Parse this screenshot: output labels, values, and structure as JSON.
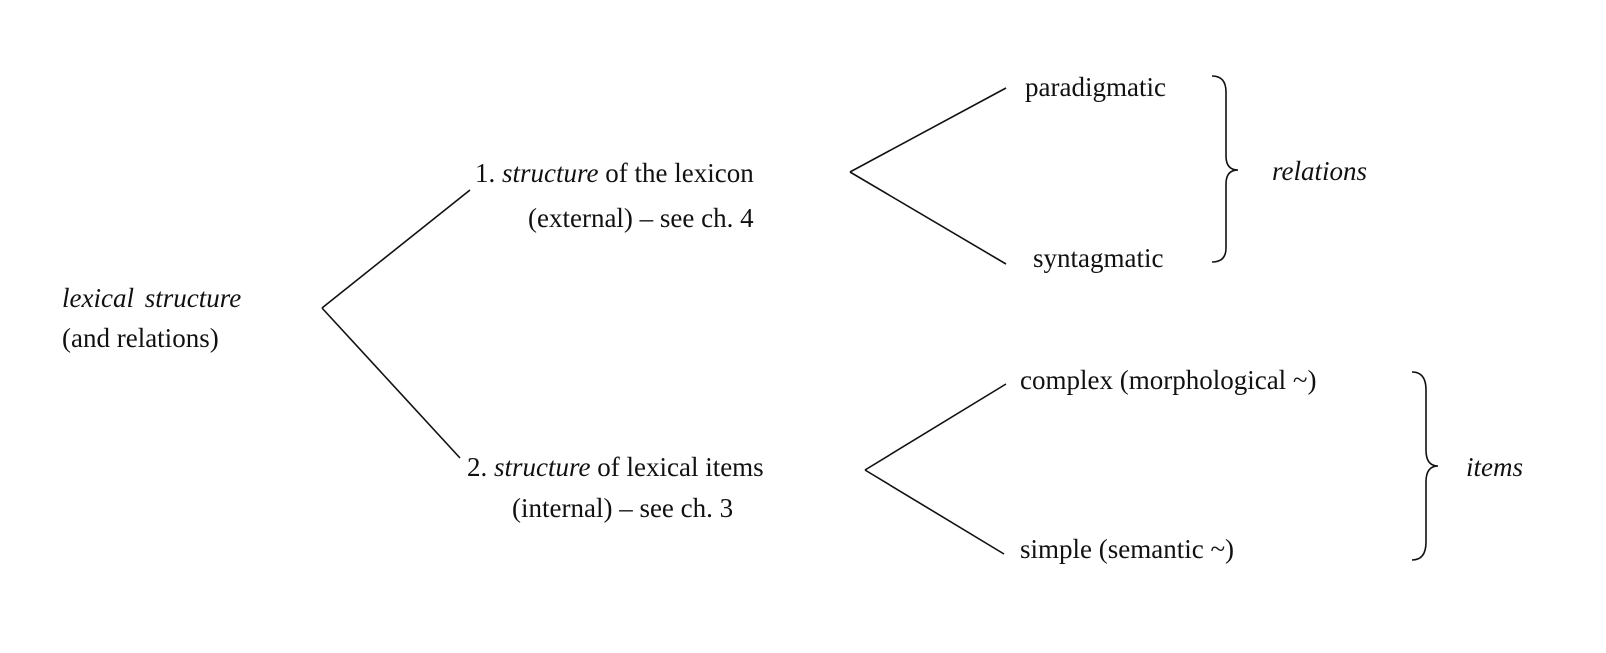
{
  "root": {
    "line1": "lexical structure",
    "line2": "(and relations)"
  },
  "branches": [
    {
      "number": "1.",
      "keyword": "structure",
      "rest": " of the lexicon",
      "line2": "(external) – see ch. 4",
      "leaves": [
        "paradigmatic",
        "syntagmatic"
      ],
      "group_label": "relations"
    },
    {
      "number": "2.",
      "keyword": "structure",
      "rest": " of lexical items",
      "line2": "(internal) – see ch. 3",
      "leaves": [
        "complex (morphological ~)",
        "simple (semantic ~)"
      ],
      "group_label": "items"
    }
  ]
}
